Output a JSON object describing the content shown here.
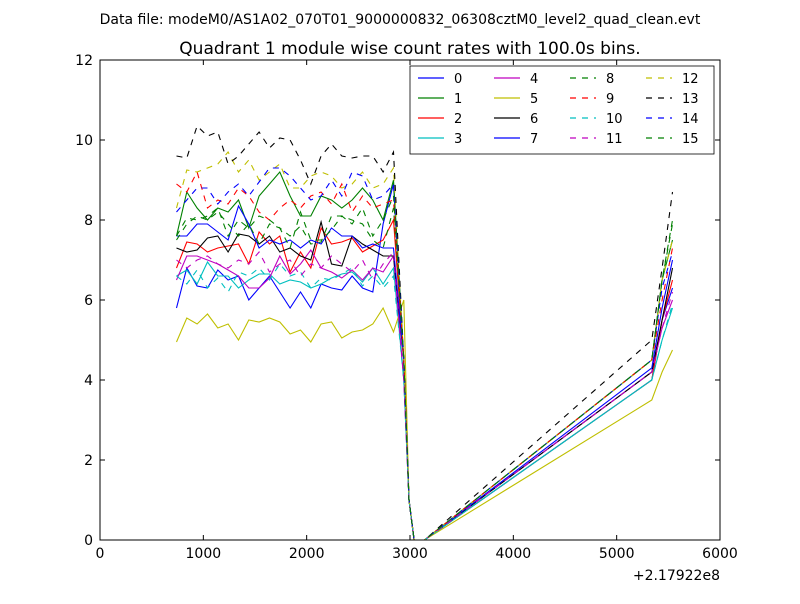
{
  "header": {
    "data_file": "Data file: modeM0/AS1A02_070T01_9000000832_06308cztM0_level2_quad_clean.evt"
  },
  "chart_data": {
    "type": "line",
    "title": "Quadrant 1 module wise count rates with 100.0s bins.",
    "xlabel": "",
    "ylabel": "",
    "x_offset_text": "+2.17922e8",
    "xlim": [
      0,
      6000
    ],
    "ylim": [
      0,
      12
    ],
    "xticks": [
      0,
      1000,
      2000,
      3000,
      4000,
      5000,
      6000
    ],
    "xtick_labels": [
      "0",
      "1000",
      "2000",
      "3000",
      "4000",
      "5000",
      "6000"
    ],
    "yticks": [
      0,
      2,
      4,
      6,
      8,
      10,
      12
    ],
    "ytick_labels": [
      "0",
      "2",
      "4",
      "6",
      "8",
      "10",
      "12"
    ],
    "grid": false,
    "legend_position": "top-right",
    "legend_columns": 4,
    "x": [
      740,
      840,
      940,
      1040,
      1140,
      1240,
      1340,
      1440,
      1540,
      1640,
      1740,
      1840,
      1940,
      2040,
      2140,
      2240,
      2340,
      2440,
      2540,
      2640,
      2740,
      2840,
      2940,
      2990,
      3040,
      3140,
      5340,
      5440,
      5540
    ],
    "series": [
      {
        "name": "0",
        "color": "#0000ff",
        "dash": "solid",
        "values": [
          5.8,
          6.8,
          6.35,
          6.3,
          6.75,
          6.5,
          6.6,
          6.0,
          6.3,
          6.6,
          6.2,
          5.8,
          6.2,
          5.8,
          6.4,
          6.3,
          6.25,
          6.6,
          6.3,
          6.2,
          7.9,
          8.9,
          4.5,
          1.0,
          0,
          0,
          4.0,
          5.5,
          6.3
        ]
      },
      {
        "name": "1",
        "color": "#008000",
        "dash": "solid",
        "values": [
          7.6,
          8.7,
          8.3,
          8.0,
          8.3,
          8.2,
          8.5,
          7.8,
          8.6,
          8.9,
          9.2,
          8.6,
          8.1,
          8.1,
          8.6,
          8.5,
          8.3,
          8.5,
          8.8,
          8.5,
          8.0,
          9.0,
          4.5,
          1.0,
          0,
          0,
          4.5,
          6.5,
          7.5
        ]
      },
      {
        "name": "2",
        "color": "#ff0000",
        "dash": "solid",
        "values": [
          6.8,
          7.45,
          7.4,
          7.2,
          7.3,
          7.35,
          7.4,
          6.9,
          7.7,
          7.4,
          7.6,
          6.7,
          7.2,
          6.8,
          7.8,
          7.4,
          7.45,
          7.55,
          7.2,
          7.35,
          7.5,
          8.0,
          4.5,
          1.0,
          0,
          0,
          4.0,
          5.5,
          6.5
        ]
      },
      {
        "name": "3",
        "color": "#00bfbf",
        "dash": "solid",
        "values": [
          6.6,
          6.75,
          6.4,
          6.95,
          6.6,
          6.6,
          6.3,
          6.5,
          6.65,
          6.65,
          6.4,
          6.5,
          6.45,
          6.3,
          6.4,
          6.55,
          6.65,
          6.7,
          6.45,
          6.8,
          6.4,
          6.8,
          4.0,
          1.0,
          0,
          0,
          4.0,
          5.0,
          5.8
        ]
      },
      {
        "name": "4",
        "color": "#bf00bf",
        "dash": "solid",
        "values": [
          6.5,
          7.1,
          7.1,
          7.0,
          6.9,
          6.75,
          6.6,
          6.3,
          6.3,
          6.55,
          7.1,
          6.65,
          6.9,
          7.25,
          6.8,
          6.7,
          6.55,
          6.75,
          6.5,
          6.8,
          6.7,
          7.1,
          4.0,
          1.0,
          0,
          0,
          4.2,
          5.3,
          6.0
        ]
      },
      {
        "name": "5",
        "color": "#bfbf00",
        "dash": "solid",
        "values": [
          4.95,
          5.55,
          5.4,
          5.65,
          5.3,
          5.4,
          5.0,
          5.5,
          5.45,
          5.55,
          5.45,
          5.15,
          5.25,
          4.95,
          5.4,
          5.45,
          5.05,
          5.2,
          5.25,
          5.4,
          5.8,
          5.2,
          6.0,
          1.0,
          0,
          0,
          3.5,
          4.2,
          4.75
        ]
      },
      {
        "name": "6",
        "color": "#000000",
        "dash": "solid",
        "values": [
          7.3,
          7.2,
          7.25,
          7.55,
          7.6,
          7.2,
          7.65,
          7.6,
          7.4,
          7.6,
          7.2,
          7.3,
          7.1,
          7.0,
          7.95,
          6.9,
          6.85,
          7.6,
          7.4,
          7.25,
          7.1,
          7.1,
          4.5,
          1.0,
          0,
          0,
          4.2,
          5.5,
          6.8
        ]
      },
      {
        "name": "7",
        "color": "#0000ff",
        "dash": "solid",
        "values": [
          7.6,
          7.6,
          7.9,
          7.9,
          7.7,
          7.5,
          8.35,
          7.9,
          7.3,
          7.5,
          7.4,
          7.5,
          7.3,
          7.5,
          7.4,
          7.8,
          7.6,
          7.6,
          7.3,
          7.4,
          7.3,
          7.3,
          4.5,
          1.0,
          0,
          0,
          4.3,
          5.8,
          7.0
        ]
      },
      {
        "name": "8",
        "color": "#008000",
        "dash": "dashed",
        "values": [
          7.5,
          7.9,
          8.1,
          8.0,
          8.2,
          7.9,
          7.6,
          7.9,
          7.4,
          7.9,
          7.8,
          7.6,
          7.85,
          7.4,
          7.45,
          8.1,
          8.1,
          8.0,
          7.9,
          7.5,
          7.3,
          8.3,
          4.5,
          1.0,
          0,
          0,
          4.5,
          6.5,
          7.9
        ]
      },
      {
        "name": "9",
        "color": "#ff0000",
        "dash": "dashed",
        "values": [
          8.9,
          8.7,
          9.2,
          8.3,
          8.5,
          8.4,
          8.8,
          8.6,
          8.2,
          8.0,
          8.3,
          8.5,
          8.3,
          8.6,
          8.7,
          8.4,
          8.9,
          8.2,
          8.6,
          8.3,
          8.4,
          8.5,
          4.5,
          1.0,
          0,
          0,
          4.5,
          6.0,
          7.3
        ]
      },
      {
        "name": "10",
        "color": "#00bfbf",
        "dash": "dashed",
        "values": [
          6.6,
          6.4,
          6.75,
          6.3,
          6.55,
          6.2,
          6.7,
          6.6,
          6.8,
          6.5,
          6.9,
          6.6,
          6.7,
          6.3,
          6.55,
          6.5,
          6.65,
          6.8,
          6.35,
          6.6,
          6.3,
          6.6,
          4.0,
          1.0,
          0,
          0,
          4.0,
          5.0,
          5.9
        ]
      },
      {
        "name": "11",
        "color": "#bf00bf",
        "dash": "dashed",
        "values": [
          7.0,
          6.8,
          7.0,
          7.1,
          6.9,
          6.8,
          7.0,
          6.9,
          7.2,
          6.7,
          6.9,
          7.0,
          6.6,
          6.9,
          6.8,
          7.1,
          6.9,
          6.7,
          7.0,
          6.5,
          6.9,
          7.2,
          4.0,
          1.0,
          0,
          0,
          4.2,
          5.3,
          6.2
        ]
      },
      {
        "name": "12",
        "color": "#bfbf00",
        "dash": "dashed",
        "values": [
          8.3,
          9.25,
          9.2,
          9.3,
          9.4,
          9.7,
          9.2,
          9.5,
          9.0,
          9.2,
          9.4,
          8.8,
          8.8,
          9.1,
          9.2,
          9.1,
          8.8,
          8.9,
          9.2,
          8.8,
          8.9,
          9.3,
          4.5,
          1.0,
          0,
          0,
          4.5,
          6.5,
          7.5
        ]
      },
      {
        "name": "13",
        "color": "#000000",
        "dash": "dashed",
        "values": [
          9.6,
          9.55,
          10.35,
          10.1,
          10.2,
          9.4,
          9.6,
          9.9,
          10.2,
          9.8,
          10.05,
          10.0,
          9.5,
          8.9,
          9.6,
          9.9,
          9.6,
          9.55,
          9.6,
          9.6,
          9.2,
          9.7,
          4.5,
          1.0,
          0,
          0,
          5.0,
          6.8,
          8.7
        ]
      },
      {
        "name": "14",
        "color": "#0000ff",
        "dash": "dashed",
        "values": [
          8.2,
          8.5,
          8.8,
          8.8,
          8.4,
          8.7,
          8.9,
          8.6,
          8.95,
          9.3,
          9.3,
          9.1,
          8.8,
          8.5,
          8.6,
          9.0,
          8.6,
          9.2,
          9.1,
          8.5,
          8.6,
          8.9,
          4.5,
          1.0,
          0,
          0,
          4.5,
          6.3,
          7.2
        ]
      },
      {
        "name": "15",
        "color": "#008000",
        "dash": "dashed",
        "values": [
          7.6,
          8.05,
          8.0,
          8.1,
          8.3,
          7.6,
          8.0,
          7.8,
          8.1,
          8.0,
          7.8,
          7.3,
          8.2,
          7.5,
          7.5,
          7.75,
          8.1,
          7.9,
          8.3,
          7.6,
          8.0,
          8.6,
          4.5,
          1.0,
          0,
          0,
          4.5,
          6.5,
          8.0
        ]
      }
    ]
  }
}
